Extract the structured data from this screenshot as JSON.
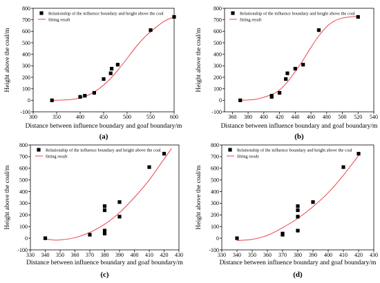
{
  "panel_labels": [
    "(a)",
    "(b)",
    "(c)",
    "(d)"
  ],
  "legend": {
    "points": "Relationship of the influence boundary and height above the coal",
    "fit": "fitting result"
  },
  "axes_text": {
    "xlabel": "Distance between influence boundary and goaf boundary/m",
    "ylabel": "Height above the coal/m"
  },
  "colors": {
    "points": "#000000",
    "fit": "#e8434b",
    "axis": "#000000"
  },
  "chart_data": [
    {
      "type": "scatter",
      "panel": "(a)",
      "xlabel": "Distance between influence boundary and goaf boundary/m",
      "ylabel": "Height above the coal/m",
      "xlim": [
        300,
        600
      ],
      "ylim": [
        -100,
        800
      ],
      "xticks": [
        300,
        350,
        400,
        450,
        500,
        550,
        600
      ],
      "yticks": [
        -100,
        0,
        100,
        200,
        300,
        400,
        500,
        600,
        700,
        800
      ],
      "legend_position": "top-left",
      "grid": false,
      "series": [
        {
          "name": "Relationship of the influence boundary and height above the coal",
          "kind": "points",
          "x": [
            340,
            400,
            410,
            430,
            450,
            465,
            467,
            480,
            550,
            600
          ],
          "y": [
            0,
            30,
            40,
            65,
            185,
            235,
            275,
            310,
            610,
            725
          ]
        },
        {
          "name": "fitting result",
          "kind": "curve",
          "x": [
            340,
            360,
            380,
            400,
            420,
            440,
            460,
            480,
            500,
            520,
            540,
            560,
            580,
            600
          ],
          "y": [
            0,
            2,
            7,
            20,
            50,
            100,
            170,
            260,
            365,
            470,
            560,
            630,
            690,
            725
          ]
        }
      ]
    },
    {
      "type": "scatter",
      "panel": "(b)",
      "xlabel": "Distance between influence boundary and goaf boundary/m",
      "ylabel": "Height above the coal/m",
      "xlim": [
        350,
        540
      ],
      "ylim": [
        -100,
        800
      ],
      "xticks": [
        360,
        380,
        400,
        420,
        440,
        460,
        480,
        500,
        520,
        540
      ],
      "yticks": [
        -100,
        0,
        100,
        200,
        300,
        400,
        500,
        600,
        700,
        800
      ],
      "legend_position": "top-left",
      "grid": false,
      "series": [
        {
          "name": "Relationship of the influence boundary and height above the coal",
          "kind": "points",
          "x": [
            370,
            410,
            410,
            420,
            428,
            430,
            440,
            450,
            470,
            520
          ],
          "y": [
            0,
            30,
            40,
            65,
            185,
            235,
            275,
            310,
            610,
            725
          ]
        },
        {
          "name": "fitting result",
          "kind": "curve",
          "x": [
            370,
            390,
            410,
            420,
            430,
            440,
            450,
            460,
            470,
            480,
            490,
            500,
            510,
            520
          ],
          "y": [
            0,
            10,
            50,
            90,
            160,
            250,
            350,
            460,
            560,
            640,
            690,
            715,
            725,
            730
          ]
        }
      ]
    },
    {
      "type": "scatter",
      "panel": "(c)",
      "xlabel": "Distance between influence boundary and goaf boundary/m",
      "ylabel": "Height above the coal/m",
      "xlim": [
        330,
        430
      ],
      "ylim": [
        -100,
        800
      ],
      "xticks": [
        330,
        340,
        350,
        360,
        370,
        380,
        390,
        400,
        410,
        420,
        430
      ],
      "yticks": [
        -100,
        0,
        100,
        200,
        300,
        400,
        500,
        600,
        700,
        800
      ],
      "legend_position": "top-left",
      "grid": false,
      "series": [
        {
          "name": "Relationship of the influence boundary and height above the coal",
          "kind": "points",
          "x": [
            340,
            370,
            380,
            380,
            380,
            380,
            390,
            390,
            410,
            420
          ],
          "y": [
            0,
            30,
            40,
            65,
            240,
            275,
            310,
            185,
            610,
            725
          ]
        },
        {
          "name": "fitting result",
          "kind": "curve",
          "x": [
            340,
            345,
            350,
            360,
            370,
            380,
            390,
            400,
            410,
            420,
            425
          ],
          "y": [
            -5,
            -15,
            -15,
            5,
            50,
            120,
            220,
            350,
            500,
            680,
            770
          ]
        }
      ]
    },
    {
      "type": "scatter",
      "panel": "(d)",
      "xlabel": "Distance between influence boundary and goaf boundary/m",
      "ylabel": "Height above the coal/m",
      "xlim": [
        330,
        430
      ],
      "ylim": [
        -100,
        800
      ],
      "xticks": [
        330,
        340,
        350,
        360,
        370,
        380,
        390,
        400,
        410,
        420,
        430
      ],
      "yticks": [
        -100,
        0,
        100,
        200,
        300,
        400,
        500,
        600,
        700,
        800
      ],
      "legend_position": "top-left",
      "grid": false,
      "series": [
        {
          "name": "Relationship of the influence boundary and height above the coal",
          "kind": "points",
          "x": [
            340,
            370,
            370,
            380,
            380,
            380,
            380,
            390,
            410,
            420
          ],
          "y": [
            0,
            30,
            40,
            65,
            185,
            240,
            275,
            310,
            610,
            725
          ]
        },
        {
          "name": "fitting result",
          "kind": "curve",
          "x": [
            340,
            350,
            360,
            370,
            380,
            390,
            400,
            410,
            420
          ],
          "y": [
            -20,
            -10,
            25,
            90,
            170,
            270,
            390,
            540,
            710
          ]
        }
      ]
    }
  ]
}
